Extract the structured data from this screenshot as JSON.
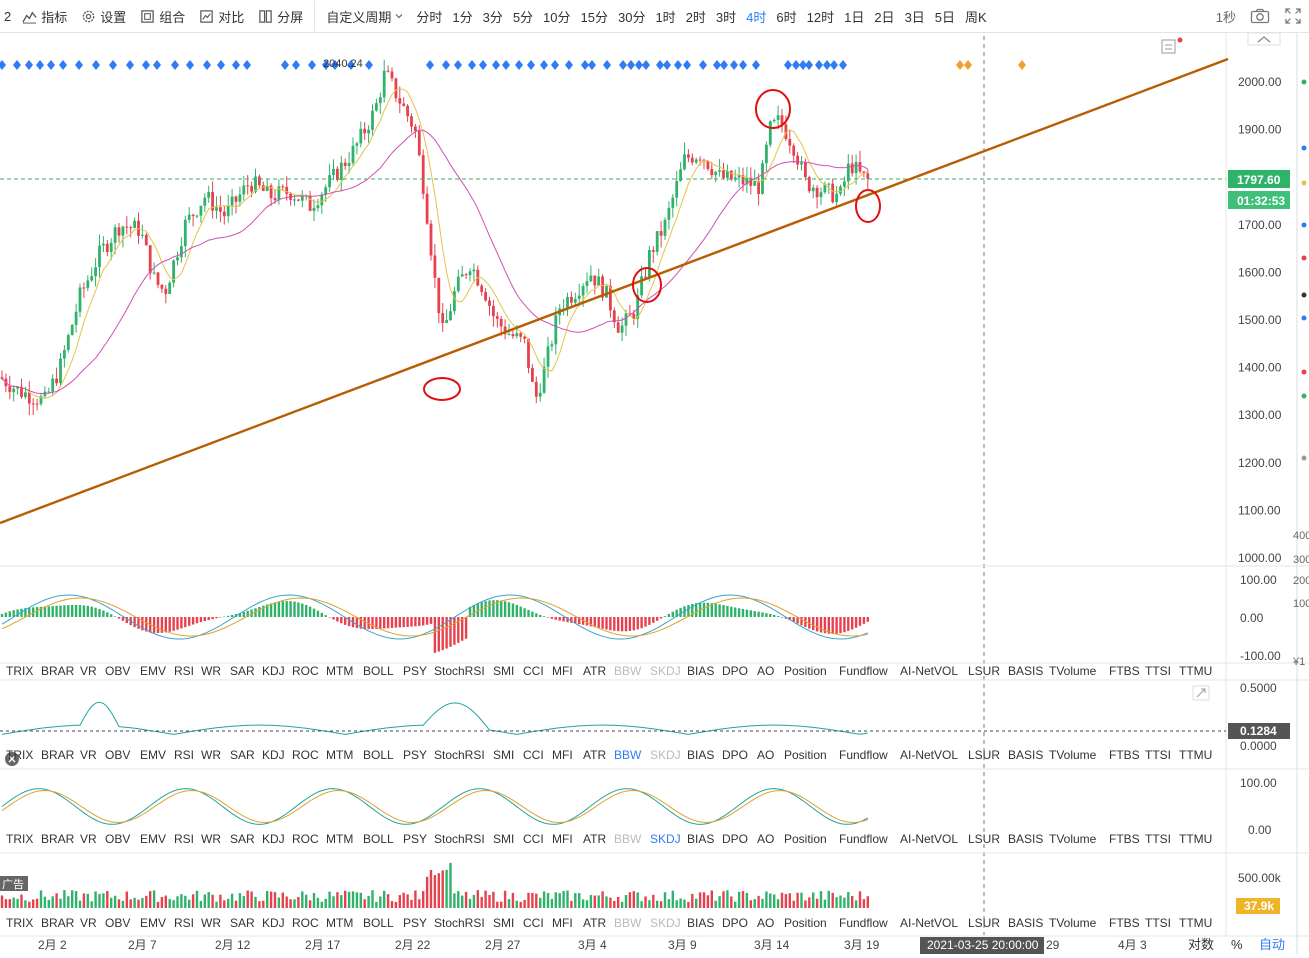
{
  "toolbar": {
    "left_label": "2",
    "buttons": [
      {
        "label": "指标",
        "icon": "line-chart-icon"
      },
      {
        "label": "设置",
        "icon": "gear-icon"
      },
      {
        "label": "组合",
        "icon": "layout-icon"
      },
      {
        "label": "对比",
        "icon": "compare-icon"
      },
      {
        "label": "分屏",
        "icon": "split-screen-icon"
      }
    ],
    "custom_period": "自定义周期",
    "periods": [
      "分时",
      "1分",
      "3分",
      "5分",
      "10分",
      "15分",
      "30分",
      "1时",
      "2时",
      "3时",
      "4时",
      "6时",
      "12时",
      "1日",
      "2日",
      "3日",
      "5日",
      "周K"
    ],
    "active_period": "4时",
    "refresh": "1秒",
    "camera_icon": "camera-icon",
    "fullscreen_icon": "fullscreen-icon"
  },
  "colors": {
    "up": "#2fb36b",
    "down": "#e8414e",
    "accent": "#2f7bf5",
    "trendline": "#b85c00",
    "annotation": "#e01010",
    "current_price_bg": "#2fb36b"
  },
  "price_panel": {
    "peak_label": "2040.24",
    "current_price": "1797.60",
    "countdown": "01:32:53",
    "y_ticks": [
      "2000.00",
      "1900.00",
      "1800.00",
      "1700.00",
      "1600.00",
      "1500.00",
      "1400.00",
      "1300.00",
      "1200.00",
      "1100.00",
      "1000.00"
    ],
    "collapse_icon": "chevron-up-icon",
    "note_icon": "note-icon"
  },
  "macd_panel": {
    "y_ticks": [
      "100.00",
      "0.00",
      "-100.00"
    ]
  },
  "bbw_panel": {
    "y_ticks": [
      "0.5000",
      "0.0000"
    ],
    "current": "0.1284",
    "expand_icon": "expand-icon",
    "close_icon": "close-icon"
  },
  "skdj_panel": {
    "y_ticks": [
      "100.00",
      "0.00"
    ]
  },
  "volume_panel": {
    "y_ticks": [
      "500.00k"
    ],
    "current": "37.9k",
    "ad_label": "广告"
  },
  "indicator_tabs": [
    "TRIX",
    "BRAR",
    "VR",
    "OBV",
    "EMV",
    "RSI",
    "WR",
    "SAR",
    "KDJ",
    "ROC",
    "MTM",
    "BOLL",
    "PSY",
    "StochRSI",
    "SMI",
    "CCI",
    "MFI",
    "ATR",
    "BBW",
    "SKDJ",
    "BIAS",
    "DPO",
    "AO",
    "Position",
    "Fundflow",
    "AI-NetVOL",
    "LSUR",
    "BASIS",
    "TVolume",
    "FTBS",
    "TTSI",
    "TTMU"
  ],
  "indicator_rows": [
    {
      "active": ""
    },
    {
      "active": "BBW"
    },
    {
      "active": "SKDJ"
    },
    {
      "active": ""
    }
  ],
  "x_axis": {
    "labels": [
      "2月 2",
      "2月 7",
      "2月 12",
      "2月 17",
      "2月 22",
      "2月 27",
      "3月 4",
      "3月 9",
      "3月 14",
      "3月 19",
      "29",
      "4月 3"
    ],
    "crosshair_time": "2021-03-25 20:00:00",
    "scale_log": "对数",
    "scale_pct": "%",
    "scale_auto": "自动"
  },
  "right_strip": {
    "labels": [
      "400",
      "300",
      "200",
      "100",
      "¥1"
    ]
  }
}
